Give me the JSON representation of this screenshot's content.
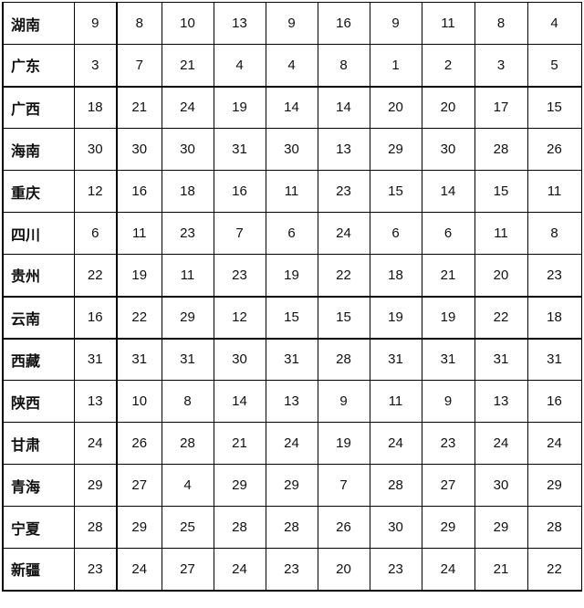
{
  "table": {
    "rows": [
      {
        "province": "湖南",
        "values": [
          9,
          8,
          10,
          13,
          9,
          16,
          9,
          11,
          8,
          4
        ]
      },
      {
        "province": "广东",
        "values": [
          3,
          7,
          21,
          4,
          4,
          8,
          1,
          2,
          3,
          5
        ]
      },
      {
        "province": "广西",
        "values": [
          18,
          21,
          24,
          19,
          14,
          14,
          20,
          20,
          17,
          15
        ]
      },
      {
        "province": "海南",
        "values": [
          30,
          30,
          30,
          31,
          30,
          13,
          29,
          30,
          28,
          26
        ]
      },
      {
        "province": "重庆",
        "values": [
          12,
          16,
          18,
          16,
          11,
          23,
          15,
          14,
          15,
          11
        ]
      },
      {
        "province": "四川",
        "values": [
          6,
          11,
          23,
          7,
          6,
          24,
          6,
          6,
          11,
          8
        ]
      },
      {
        "province": "贵州",
        "values": [
          22,
          19,
          11,
          23,
          19,
          22,
          18,
          21,
          20,
          23
        ]
      },
      {
        "province": "云南",
        "values": [
          16,
          22,
          29,
          12,
          15,
          15,
          19,
          19,
          22,
          18
        ]
      },
      {
        "province": "西藏",
        "values": [
          31,
          31,
          31,
          30,
          31,
          28,
          31,
          31,
          31,
          31
        ]
      },
      {
        "province": "陕西",
        "values": [
          13,
          10,
          8,
          14,
          13,
          9,
          11,
          9,
          13,
          16
        ]
      },
      {
        "province": "甘肃",
        "values": [
          24,
          26,
          28,
          21,
          24,
          19,
          24,
          23,
          24,
          24
        ]
      },
      {
        "province": "青海",
        "values": [
          29,
          27,
          4,
          29,
          29,
          7,
          28,
          27,
          30,
          29
        ]
      },
      {
        "province": "宁夏",
        "values": [
          28,
          29,
          25,
          28,
          28,
          26,
          30,
          29,
          29,
          28
        ]
      },
      {
        "province": "新疆",
        "values": [
          23,
          24,
          27,
          24,
          23,
          20,
          23,
          24,
          21,
          22
        ]
      }
    ]
  }
}
